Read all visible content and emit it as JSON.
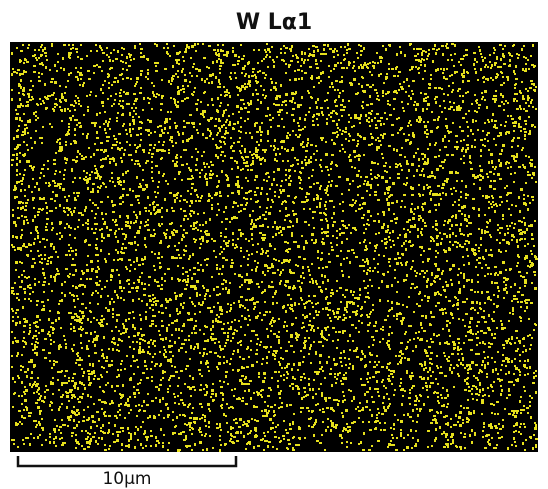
{
  "title": "W Lα1",
  "scale_bar": {
    "label": "10μm"
  }
}
